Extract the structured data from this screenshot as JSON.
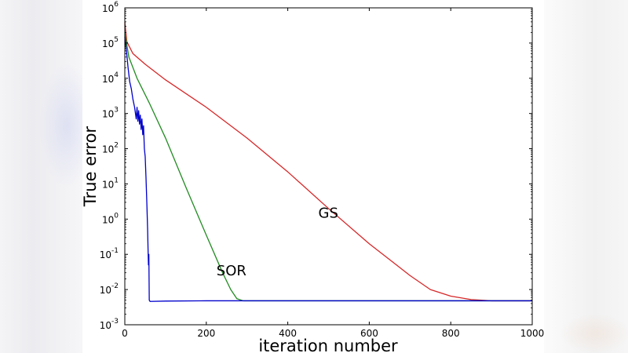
{
  "chart_data": {
    "type": "line",
    "title": "",
    "xlabel": "iteration number",
    "ylabel": "True error",
    "xscale": "linear",
    "yscale": "log",
    "xlim": [
      0,
      1000
    ],
    "ylim": [
      0.001,
      1000000
    ],
    "xticks": [
      0,
      200,
      400,
      600,
      800,
      1000
    ],
    "yticks": [
      {
        "base": "10",
        "exp": "-3",
        "value": 0.001
      },
      {
        "base": "10",
        "exp": "-2",
        "value": 0.01
      },
      {
        "base": "10",
        "exp": "-1",
        "value": 0.1
      },
      {
        "base": "10",
        "exp": "0",
        "value": 1
      },
      {
        "base": "10",
        "exp": "1",
        "value": 10
      },
      {
        "base": "10",
        "exp": "2",
        "value": 100
      },
      {
        "base": "10",
        "exp": "3",
        "value": 1000
      },
      {
        "base": "10",
        "exp": "4",
        "value": 10000
      },
      {
        "base": "10",
        "exp": "5",
        "value": 100000
      },
      {
        "base": "10",
        "exp": "6",
        "value": 1000000
      }
    ],
    "grid": false,
    "legend": "none",
    "series": [
      {
        "name": "GS",
        "color": "#d62728",
        "label_anchor": [
          475,
          1.1
        ],
        "points": [
          [
            0,
            400000
          ],
          [
            5,
            110000
          ],
          [
            20,
            50000
          ],
          [
            50,
            25000
          ],
          [
            100,
            9000
          ],
          [
            200,
            1500
          ],
          [
            300,
            200
          ],
          [
            400,
            22
          ],
          [
            500,
            2.0
          ],
          [
            600,
            0.2
          ],
          [
            700,
            0.025
          ],
          [
            750,
            0.01
          ],
          [
            800,
            0.0065
          ],
          [
            850,
            0.0052
          ],
          [
            900,
            0.0048
          ],
          [
            1000,
            0.0048
          ]
        ]
      },
      {
        "name": "SOR",
        "color": "#228b22",
        "label_anchor": [
          225,
          0.025
        ],
        "points": [
          [
            0,
            200000
          ],
          [
            10,
            40000
          ],
          [
            30,
            10000
          ],
          [
            60,
            2000
          ],
          [
            100,
            200
          ],
          [
            150,
            8
          ],
          [
            200,
            0.35
          ],
          [
            240,
            0.03
          ],
          [
            260,
            0.01
          ],
          [
            275,
            0.0055
          ],
          [
            290,
            0.0048
          ],
          [
            1000,
            0.0048
          ]
        ]
      },
      {
        "name": "",
        "color": "#0000cc",
        "points": [
          [
            0,
            150000
          ],
          [
            4,
            60000
          ],
          [
            8,
            20000
          ],
          [
            12,
            8000
          ],
          [
            16,
            5000
          ],
          [
            20,
            2500
          ],
          [
            24,
            1500
          ],
          [
            28,
            700
          ],
          [
            30,
            1500
          ],
          [
            32,
            600
          ],
          [
            34,
            1200
          ],
          [
            36,
            500
          ],
          [
            38,
            900
          ],
          [
            40,
            350
          ],
          [
            42,
            700
          ],
          [
            44,
            250
          ],
          [
            46,
            450
          ],
          [
            48,
            100
          ],
          [
            50,
            60
          ],
          [
            52,
            15
          ],
          [
            54,
            3
          ],
          [
            56,
            0.5
          ],
          [
            57,
            0.15
          ],
          [
            58,
            0.05
          ],
          [
            59,
            0.1
          ],
          [
            60,
            0.005
          ],
          [
            62,
            0.0046
          ],
          [
            100,
            0.0047
          ],
          [
            200,
            0.0048
          ],
          [
            400,
            0.0048
          ],
          [
            1000,
            0.0048
          ]
        ]
      }
    ]
  }
}
